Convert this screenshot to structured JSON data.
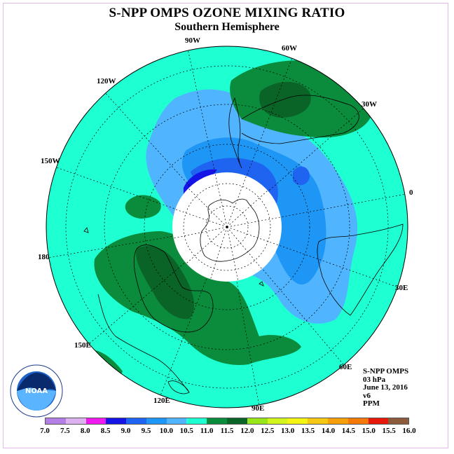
{
  "title": "S-NPP OMPS OZONE MIXING RATIO",
  "subtitle": "Southern Hemisphere",
  "longitude_labels": [
    {
      "name": "lon-90w",
      "text": "90W"
    },
    {
      "name": "lon-60w",
      "text": "60W"
    },
    {
      "name": "lon-120w",
      "text": "120W"
    },
    {
      "name": "lon-30w",
      "text": "30W"
    },
    {
      "name": "lon-150w",
      "text": "150W"
    },
    {
      "name": "lon-0",
      "text": "0"
    },
    {
      "name": "lon-180",
      "text": "180"
    },
    {
      "name": "lon-30e",
      "text": "30E"
    },
    {
      "name": "lon-150e",
      "text": "150E"
    },
    {
      "name": "lon-60e",
      "text": "60E"
    },
    {
      "name": "lon-120e",
      "text": "120E"
    },
    {
      "name": "lon-90e",
      "text": "90E"
    }
  ],
  "info": {
    "instrument": "S-NPP OMPS",
    "level": "03 hPa",
    "date": "June 13, 2016",
    "version": "v6",
    "units": "PPM"
  },
  "colorbar": {
    "ticks": [
      "7.0",
      "7.5",
      "8.0",
      "8.5",
      "9.0",
      "9.5",
      "10.0",
      "10.5",
      "11.0",
      "11.5",
      "12.0",
      "12.5",
      "13.0",
      "13.5",
      "14.0",
      "14.5",
      "15.0",
      "15.5",
      "16.0"
    ],
    "colors": [
      "#b37ee6",
      "#dcb3f0",
      "#f019f0",
      "#1414e6",
      "#1e64f0",
      "#1e96f5",
      "#50b4ff",
      "#1effd2",
      "#0a8c3c",
      "#0a6428",
      "#96e619",
      "#d2f51e",
      "#f5f514",
      "#f5c814",
      "#f5a00a",
      "#f5780a",
      "#e6190a",
      "#8c5a3c"
    ]
  },
  "logo": {
    "text": "NOAA"
  }
}
